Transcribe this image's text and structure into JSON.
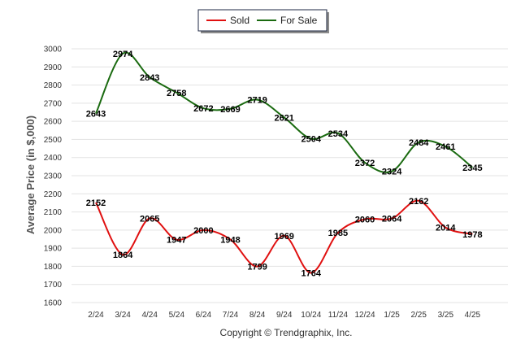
{
  "chart_data": {
    "type": "line",
    "categories": [
      "2/24",
      "3/24",
      "4/24",
      "5/24",
      "6/24",
      "7/24",
      "8/24",
      "9/24",
      "10/24",
      "11/24",
      "12/24",
      "1/25",
      "2/25",
      "3/25",
      "4/25"
    ],
    "series": [
      {
        "name": "Sold",
        "color": "#e01010",
        "values": [
          2152,
          1864,
          2065,
          1947,
          2000,
          1948,
          1799,
          1969,
          1764,
          1985,
          2060,
          2064,
          2162,
          2014,
          1978
        ]
      },
      {
        "name": "For Sale",
        "color": "#1a6a10",
        "values": [
          2643,
          2974,
          2843,
          2758,
          2672,
          2669,
          2719,
          2621,
          2504,
          2534,
          2372,
          2324,
          2484,
          2461,
          2345
        ]
      }
    ],
    "ylabel": "Average Price (in $,000)",
    "ylim": [
      1600,
      3000
    ],
    "yticks": [
      1600,
      1700,
      1800,
      1900,
      2000,
      2100,
      2200,
      2300,
      2400,
      2500,
      2600,
      2700,
      2800,
      2900,
      3000
    ],
    "grid": true,
    "legend": "top-center",
    "footer": "Copyright © Trendgraphix, Inc."
  }
}
